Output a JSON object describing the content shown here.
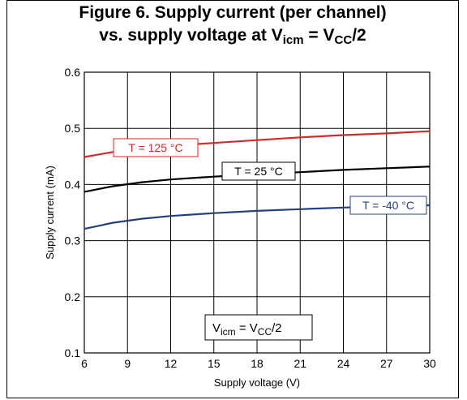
{
  "chart_data": {
    "type": "line",
    "title": {
      "line1": "Figure 6. Supply current (per channel)",
      "line2_prefix": "vs. supply voltage at V",
      "line2_sub1": "icm",
      "line2_mid": " = V",
      "line2_sub2": "CC",
      "line2_suffix": "/2"
    },
    "xlabel": "Supply voltage (V)",
    "ylabel": "Supply  current (mA)",
    "xlim": [
      6,
      30
    ],
    "ylim": [
      0.1,
      0.6
    ],
    "xticks": [
      "6",
      "9",
      "12",
      "15",
      "18",
      "21",
      "24",
      "27",
      "30"
    ],
    "yticks": [
      "0.1",
      "0.2",
      "0.3",
      "0.4",
      "0.5",
      "0.6"
    ],
    "grid": true,
    "series": [
      {
        "name": "T = 125 °C",
        "color": "#d42a2a",
        "x": [
          6,
          8,
          10,
          12,
          15,
          18,
          21,
          24,
          27,
          30
        ],
        "y": [
          0.449,
          0.458,
          0.464,
          0.469,
          0.474,
          0.479,
          0.484,
          0.488,
          0.491,
          0.495
        ]
      },
      {
        "name": "T = 25 °C",
        "color": "#000000",
        "x": [
          6,
          8,
          10,
          12,
          15,
          18,
          21,
          24,
          27,
          30
        ],
        "y": [
          0.387,
          0.397,
          0.404,
          0.409,
          0.414,
          0.418,
          0.422,
          0.426,
          0.429,
          0.432
        ]
      },
      {
        "name": "T = -40 °C",
        "color": "#24407e",
        "x": [
          6,
          8,
          10,
          12,
          15,
          18,
          21,
          24,
          27,
          30
        ],
        "y": [
          0.321,
          0.332,
          0.339,
          0.344,
          0.349,
          0.353,
          0.356,
          0.359,
          0.361,
          0.363
        ]
      }
    ],
    "annotation": {
      "prefix": "V",
      "sub1": "icm",
      "mid": " = V",
      "sub2": "CC",
      "suffix": "/2"
    }
  }
}
